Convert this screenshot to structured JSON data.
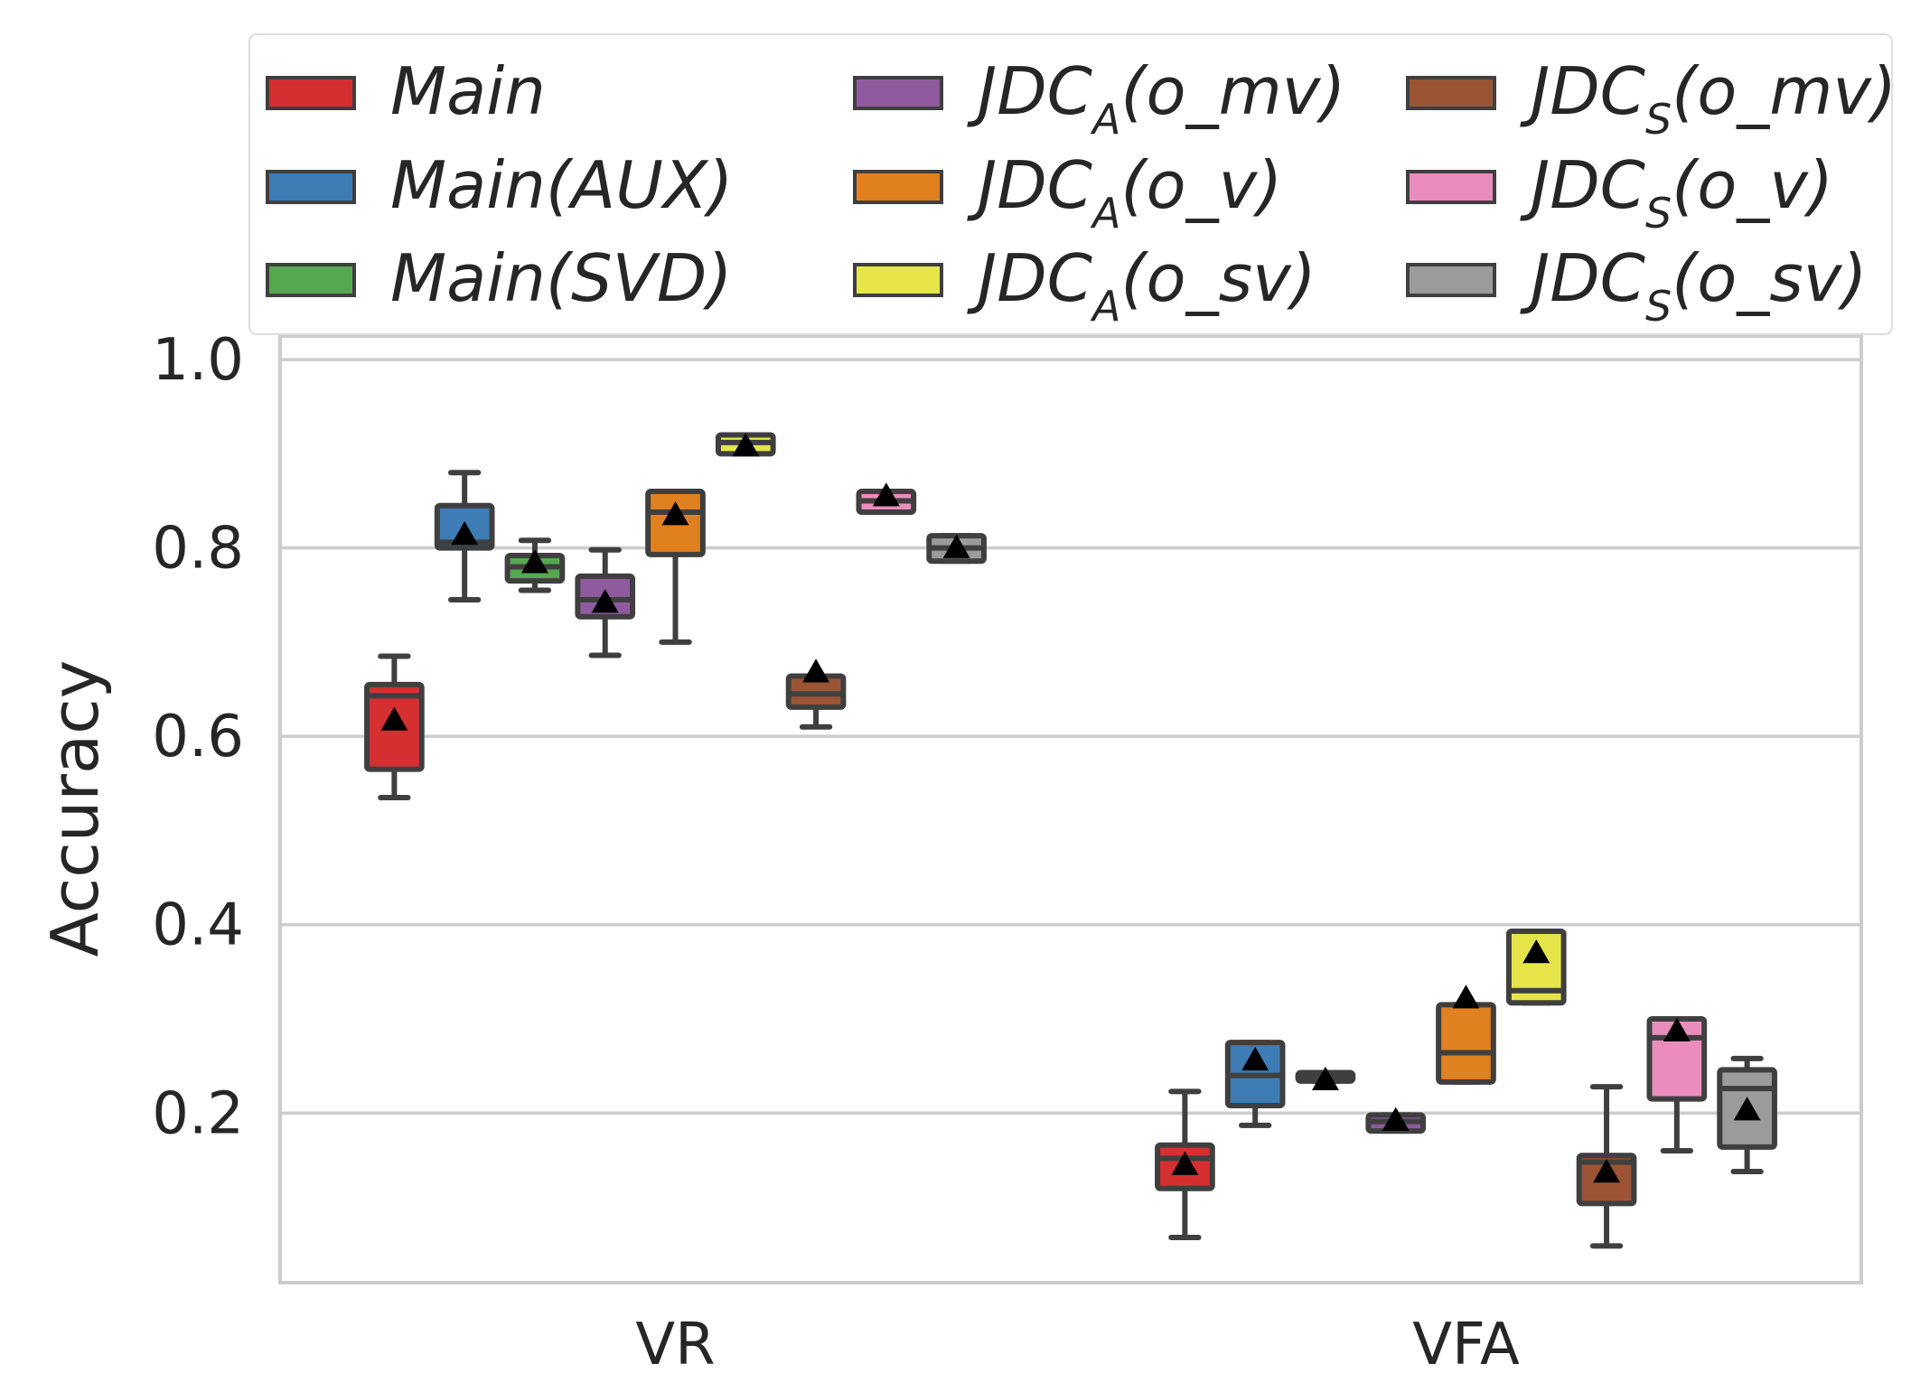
{
  "chart_data": {
    "type": "box",
    "title": "",
    "xlabel": "",
    "ylabel": "Accuracy",
    "ylim": [
      0.02,
      1.025
    ],
    "yticks": [
      0.2,
      0.4,
      0.6,
      0.8,
      1.0
    ],
    "ytick_labels": [
      "0.2",
      "0.4",
      "0.6",
      "0.8",
      "1.0"
    ],
    "categories": [
      "VR",
      "VFA"
    ],
    "legend": {
      "position": "top",
      "columns": 3
    },
    "series": [
      {
        "name": "Main",
        "label_main": "Main",
        "label_sub": "",
        "label_close": "",
        "color": "#d62f32",
        "stats": [
          {
            "whislo": 0.535,
            "q1": 0.565,
            "median": 0.643,
            "q3": 0.655,
            "whishi": 0.685,
            "mean": 0.617
          },
          {
            "whislo": 0.068,
            "q1": 0.12,
            "median": 0.152,
            "q3": 0.166,
            "whishi": 0.223,
            "mean": 0.145
          }
        ]
      },
      {
        "name": "Main(AUX)",
        "label_main": "Main(AUX)",
        "label_sub": "",
        "label_close": "",
        "color": "#3e7cb5",
        "stats": [
          {
            "whislo": 0.745,
            "q1": 0.8,
            "median": 0.806,
            "q3": 0.845,
            "whishi": 0.88,
            "mean": 0.814
          },
          {
            "whislo": 0.187,
            "q1": 0.208,
            "median": 0.24,
            "q3": 0.275,
            "whishi": 0.275,
            "mean": 0.256
          }
        ]
      },
      {
        "name": "Main(SVD)",
        "label_main": "Main(SVD)",
        "label_sub": "",
        "label_close": "",
        "color": "#55a84f",
        "stats": [
          {
            "whislo": 0.755,
            "q1": 0.765,
            "median": 0.78,
            "q3": 0.792,
            "whishi": 0.808,
            "mean": 0.784
          },
          {
            "whislo": 0.234,
            "q1": 0.234,
            "median": 0.238,
            "q3": 0.243,
            "whishi": 0.243,
            "mean": 0.235
          }
        ]
      },
      {
        "name": "JDC_A(o_mv)",
        "label_main": "JDC",
        "label_sub": "A",
        "label_close": "(o_mv)",
        "color": "#8f5a9e",
        "stats": [
          {
            "whislo": 0.686,
            "q1": 0.727,
            "median": 0.745,
            "q3": 0.77,
            "whishi": 0.798,
            "mean": 0.742
          },
          {
            "whislo": 0.181,
            "q1": 0.181,
            "median": 0.191,
            "q3": 0.198,
            "whishi": 0.198,
            "mean": 0.192
          }
        ]
      },
      {
        "name": "JDC_A(o_v)",
        "label_main": "JDC",
        "label_sub": "A",
        "label_close": "(o_v)",
        "color": "#e1801e",
        "stats": [
          {
            "whislo": 0.7,
            "q1": 0.793,
            "median": 0.838,
            "q3": 0.86,
            "whishi": 0.86,
            "mean": 0.835
          },
          {
            "whislo": 0.233,
            "q1": 0.233,
            "median": 0.264,
            "q3": 0.315,
            "whishi": 0.315,
            "mean": 0.322
          }
        ]
      },
      {
        "name": "JDC_A(o_sv)",
        "label_main": "JDC",
        "label_sub": "A",
        "label_close": "(o_sv)",
        "color": "#e5e54a",
        "stats": [
          {
            "whislo": 0.9,
            "q1": 0.9,
            "median": 0.912,
            "q3": 0.92,
            "whishi": 0.92,
            "mean": 0.908
          },
          {
            "whislo": 0.317,
            "q1": 0.317,
            "median": 0.33,
            "q3": 0.393,
            "whishi": 0.393,
            "mean": 0.37
          }
        ]
      },
      {
        "name": "JDC_S(o_mv)",
        "label_main": "JDC",
        "label_sub": "S",
        "label_close": "(o_mv)",
        "color": "#9b5534",
        "stats": [
          {
            "whislo": 0.61,
            "q1": 0.631,
            "median": 0.645,
            "q3": 0.664,
            "whishi": 0.664,
            "mean": 0.668
          },
          {
            "whislo": 0.059,
            "q1": 0.104,
            "median": 0.148,
            "q3": 0.155,
            "whishi": 0.228,
            "mean": 0.137
          }
        ]
      },
      {
        "name": "JDC_S(o_v)",
        "label_main": "JDC",
        "label_sub": "S",
        "label_close": "(o_v)",
        "color": "#ea8dbd",
        "stats": [
          {
            "whislo": 0.838,
            "q1": 0.838,
            "median": 0.85,
            "q3": 0.86,
            "whishi": 0.86,
            "mean": 0.855
          },
          {
            "whislo": 0.16,
            "q1": 0.215,
            "median": 0.28,
            "q3": 0.3,
            "whishi": 0.3,
            "mean": 0.287
          }
        ]
      },
      {
        "name": "JDC_S(o_sv)",
        "label_main": "JDC",
        "label_sub": "S",
        "label_close": "(o_sv)",
        "color": "#9b9b9b",
        "stats": [
          {
            "whislo": 0.786,
            "q1": 0.786,
            "median": 0.8,
            "q3": 0.813,
            "whishi": 0.813,
            "mean": 0.8
          },
          {
            "whislo": 0.138,
            "q1": 0.164,
            "median": 0.226,
            "q3": 0.246,
            "whishi": 0.258,
            "mean": 0.203
          }
        ]
      }
    ]
  }
}
